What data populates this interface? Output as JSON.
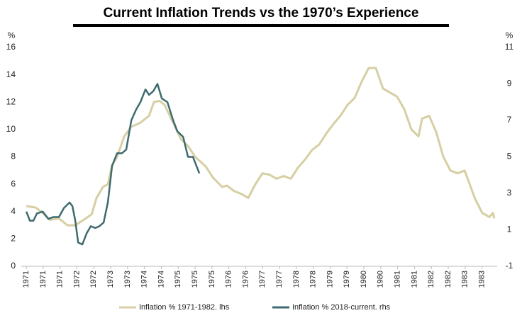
{
  "chart_data": {
    "type": "line",
    "title": "Current Inflation Trends vs the 1970’s Experience",
    "y_label": "%",
    "y2_label": "%",
    "grid": false,
    "xlim": [
      -0.3,
      27.9
    ],
    "xticks": [
      {
        "value": 0,
        "label": "1971"
      },
      {
        "value": 1,
        "label": "1971"
      },
      {
        "value": 2,
        "label": "1971"
      },
      {
        "value": 3,
        "label": "1972"
      },
      {
        "value": 4,
        "label": "1972"
      },
      {
        "value": 5,
        "label": "1973"
      },
      {
        "value": 6,
        "label": "1973"
      },
      {
        "value": 7,
        "label": "1974"
      },
      {
        "value": 8,
        "label": "1974"
      },
      {
        "value": 9,
        "label": "1975"
      },
      {
        "value": 10,
        "label": "1975"
      },
      {
        "value": 11,
        "label": "1975"
      },
      {
        "value": 12,
        "label": "1976"
      },
      {
        "value": 13,
        "label": "1976"
      },
      {
        "value": 14,
        "label": "1977"
      },
      {
        "value": 15,
        "label": "1977"
      },
      {
        "value": 16,
        "label": "1978"
      },
      {
        "value": 17,
        "label": "1978"
      },
      {
        "value": 18,
        "label": "1979"
      },
      {
        "value": 19,
        "label": "1979"
      },
      {
        "value": 20,
        "label": "1980"
      },
      {
        "value": 21,
        "label": "1980"
      },
      {
        "value": 22,
        "label": "1981"
      },
      {
        "value": 23,
        "label": "1981"
      },
      {
        "value": 24,
        "label": "1982"
      },
      {
        "value": 25,
        "label": "1982"
      },
      {
        "value": 26,
        "label": "1983"
      },
      {
        "value": 27,
        "label": "1983"
      }
    ],
    "ylim": [
      0,
      16
    ],
    "yticks": [
      0,
      2,
      4,
      6,
      8,
      10,
      12,
      14,
      16
    ],
    "y2lim": [
      -1,
      11
    ],
    "y2ticks": [
      -1,
      1,
      3,
      5,
      7,
      9,
      11
    ],
    "series": [
      {
        "name": "Inflation % 1971-1982. lhs",
        "color": "#d6cfa3",
        "x": [
          0,
          0.55,
          0.97,
          1.39,
          1.93,
          2.44,
          2.9,
          3.4,
          3.87,
          4.16,
          4.54,
          4.83,
          5.08,
          5.38,
          5.8,
          6.22,
          6.76,
          7.27,
          7.56,
          7.9,
          8.19,
          8.7,
          9.16,
          9.58,
          10.0,
          10.63,
          11.05,
          11.6,
          11.89,
          12.31,
          12.73,
          13.15,
          13.57,
          13.99,
          14.41,
          14.83,
          15.25,
          15.67,
          16.09,
          16.51,
          16.93,
          17.35,
          17.77,
          18.19,
          18.61,
          19.03,
          19.45,
          19.87,
          20.29,
          20.71,
          21.13,
          21.55,
          21.97,
          22.39,
          22.82,
          23.24,
          23.45,
          23.87,
          24.29,
          24.71,
          25.13,
          25.55,
          25.97,
          26.39,
          26.6,
          27.02,
          27.44,
          27.65,
          27.73
        ],
        "values": [
          4.4,
          4.3,
          3.9,
          3.4,
          3.5,
          3.0,
          3.0,
          3.4,
          3.8,
          5.0,
          5.8,
          6.0,
          7.4,
          8.0,
          9.5,
          10.2,
          10.5,
          11.0,
          12.0,
          12.1,
          11.8,
          10.5,
          9.3,
          8.8,
          8.0,
          7.3,
          6.5,
          5.8,
          5.9,
          5.5,
          5.3,
          5.0,
          6.0,
          6.8,
          6.7,
          6.4,
          6.6,
          6.4,
          7.2,
          7.8,
          8.5,
          8.9,
          9.7,
          10.4,
          11.0,
          11.8,
          12.3,
          13.5,
          14.5,
          14.5,
          13.0,
          12.7,
          12.4,
          11.5,
          10.0,
          9.5,
          10.8,
          11.0,
          9.8,
          8.0,
          7.0,
          6.8,
          7.0,
          5.6,
          4.9,
          3.9,
          3.6,
          3.9,
          3.5
        ]
      },
      {
        "name": "Inflation % 2018-current. rhs",
        "color": "#3e6b6f",
        "axis": "y2",
        "x": [
          0,
          0.21,
          0.42,
          0.63,
          0.97,
          1.3,
          1.6,
          1.93,
          2.23,
          2.56,
          2.73,
          2.9,
          3.07,
          3.32,
          3.57,
          3.82,
          4.08,
          4.33,
          4.58,
          4.83,
          5.08,
          5.38,
          5.67,
          5.92,
          6.22,
          6.51,
          6.76,
          7.06,
          7.27,
          7.52,
          7.77,
          8.03,
          8.36,
          8.7,
          8.95,
          9.29,
          9.58,
          9.87,
          10.25
        ],
        "values": [
          2.0,
          1.5,
          1.5,
          1.9,
          2.0,
          1.6,
          1.7,
          1.7,
          2.2,
          2.5,
          2.3,
          1.5,
          0.3,
          0.2,
          0.8,
          1.2,
          1.1,
          1.2,
          1.4,
          2.5,
          4.5,
          5.2,
          5.2,
          5.4,
          7.0,
          7.6,
          8.0,
          8.7,
          8.4,
          8.6,
          9.0,
          8.2,
          8.0,
          7.0,
          6.4,
          6.1,
          5.0,
          5.0,
          4.1
        ]
      }
    ]
  }
}
